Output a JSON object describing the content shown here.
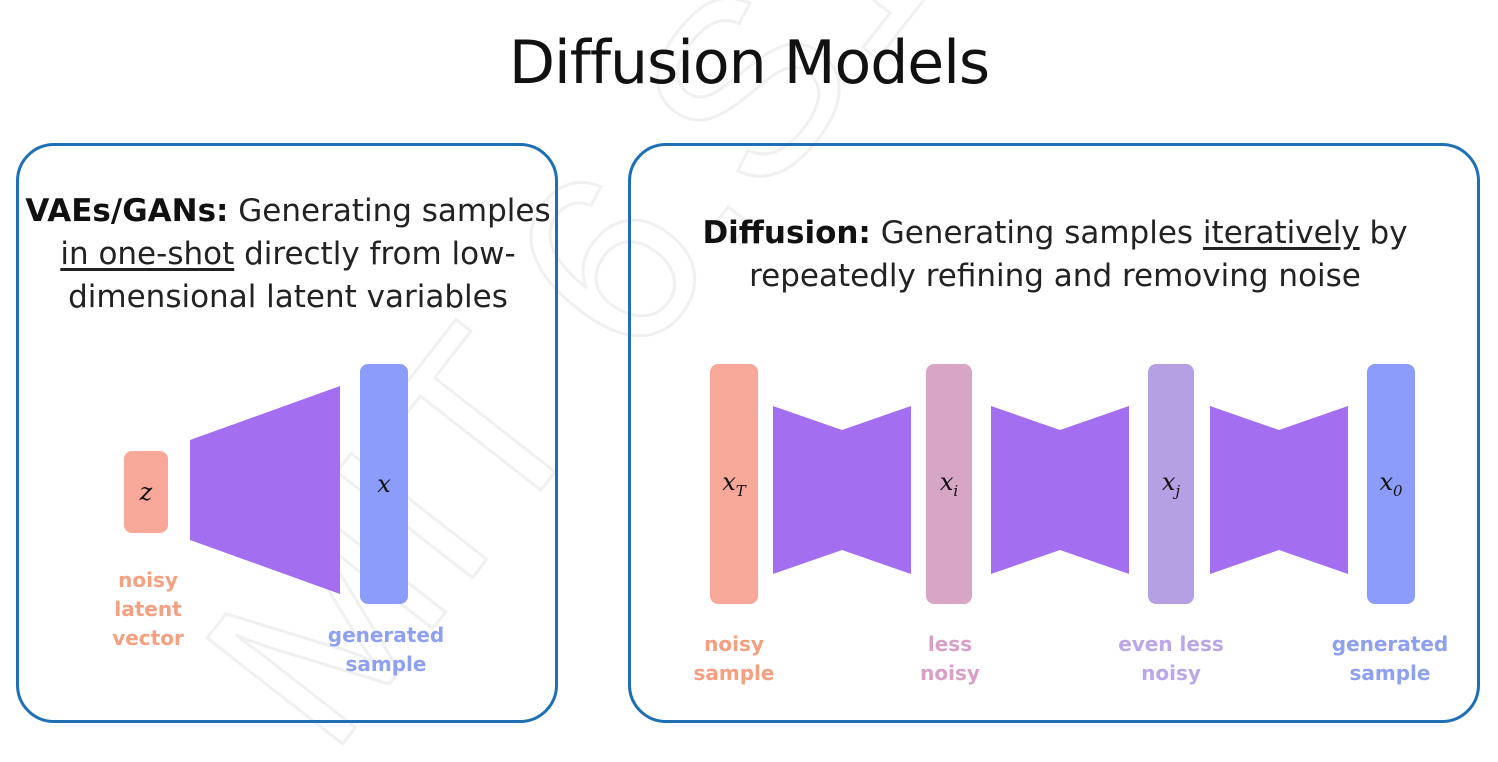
{
  "title": "Diffusion Models",
  "watermark": "MIT 6.S191",
  "colors": {
    "panel_border": "#1f6fb5",
    "network": "#a46ef0",
    "noisy": "#f8a898",
    "less_noisy": "#d6a6c4",
    "even_less_noisy": "#b6a0e4",
    "generated": "#8c9cfa",
    "noisy_text": "#f5a080",
    "less_noisy_text": "#d8a0c6",
    "even_less_noisy_text": "#bca6ea",
    "generated_text": "#8ea0f0"
  },
  "left_panel": {
    "heading": "VAEs/GANs:",
    "text_1": " Generating samples",
    "underlined": "in one-shot",
    "text_2": " directly from low-",
    "text_3": "dimensional latent variables",
    "latent_symbol": "z",
    "output_symbol": "x",
    "latent_caption_line1": "noisy",
    "latent_caption_line2": "latent vector",
    "output_caption_line1": "generated",
    "output_caption_line2": "sample"
  },
  "right_panel": {
    "heading": "Diffusion:",
    "text_1": " Generating samples ",
    "underlined": "iteratively",
    "text_2": " by",
    "text_3": "repeatedly refining and removing noise",
    "stages": [
      {
        "symbol": "x",
        "subscript": "T",
        "caption_line1": "noisy",
        "caption_line2": "sample"
      },
      {
        "symbol": "x",
        "subscript": "i",
        "caption_line1": "less",
        "caption_line2": "noisy"
      },
      {
        "symbol": "x",
        "subscript": "j",
        "caption_line1": "even less",
        "caption_line2": "noisy"
      },
      {
        "symbol": "x",
        "subscript": "0",
        "caption_line1": "generated",
        "caption_line2": "sample"
      }
    ]
  }
}
